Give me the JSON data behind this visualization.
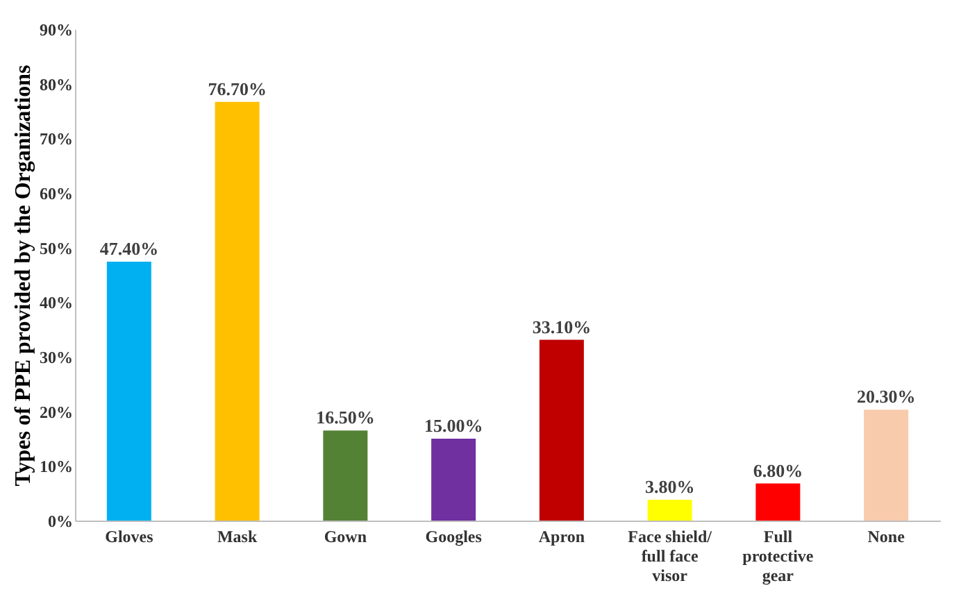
{
  "chart_data": {
    "type": "bar",
    "ylabel": "Types of PPE provided by the Organizations",
    "categories": [
      "Gloves",
      "Mask",
      "Gown",
      "Googles",
      "Apron",
      "Face shield/ full face visor",
      "Full protective gear",
      "None"
    ],
    "values": [
      47.4,
      76.7,
      16.5,
      15.0,
      33.1,
      3.8,
      6.8,
      20.3
    ],
    "value_labels": [
      "47.40%",
      "76.70%",
      "16.50%",
      "15.00%",
      "33.10%",
      "3.80%",
      "6.80%",
      "20.30%"
    ],
    "colors": [
      "#00b0f0",
      "#ffc000",
      "#548235",
      "#7030a0",
      "#c00000",
      "#ffff00",
      "#ff0000",
      "#f8cbad"
    ],
    "ylim": [
      0,
      90
    ],
    "yticks": [
      {
        "value": 0,
        "label": "0%"
      },
      {
        "value": 10,
        "label": "10%"
      },
      {
        "value": 20,
        "label": "20%"
      },
      {
        "value": 30,
        "label": "30%"
      },
      {
        "value": 40,
        "label": "40%"
      },
      {
        "value": 50,
        "label": "50%"
      },
      {
        "value": 60,
        "label": "60%"
      },
      {
        "value": 70,
        "label": "70%"
      },
      {
        "value": 80,
        "label": "80%"
      },
      {
        "value": 90,
        "label": "90%"
      }
    ],
    "grid": false
  }
}
